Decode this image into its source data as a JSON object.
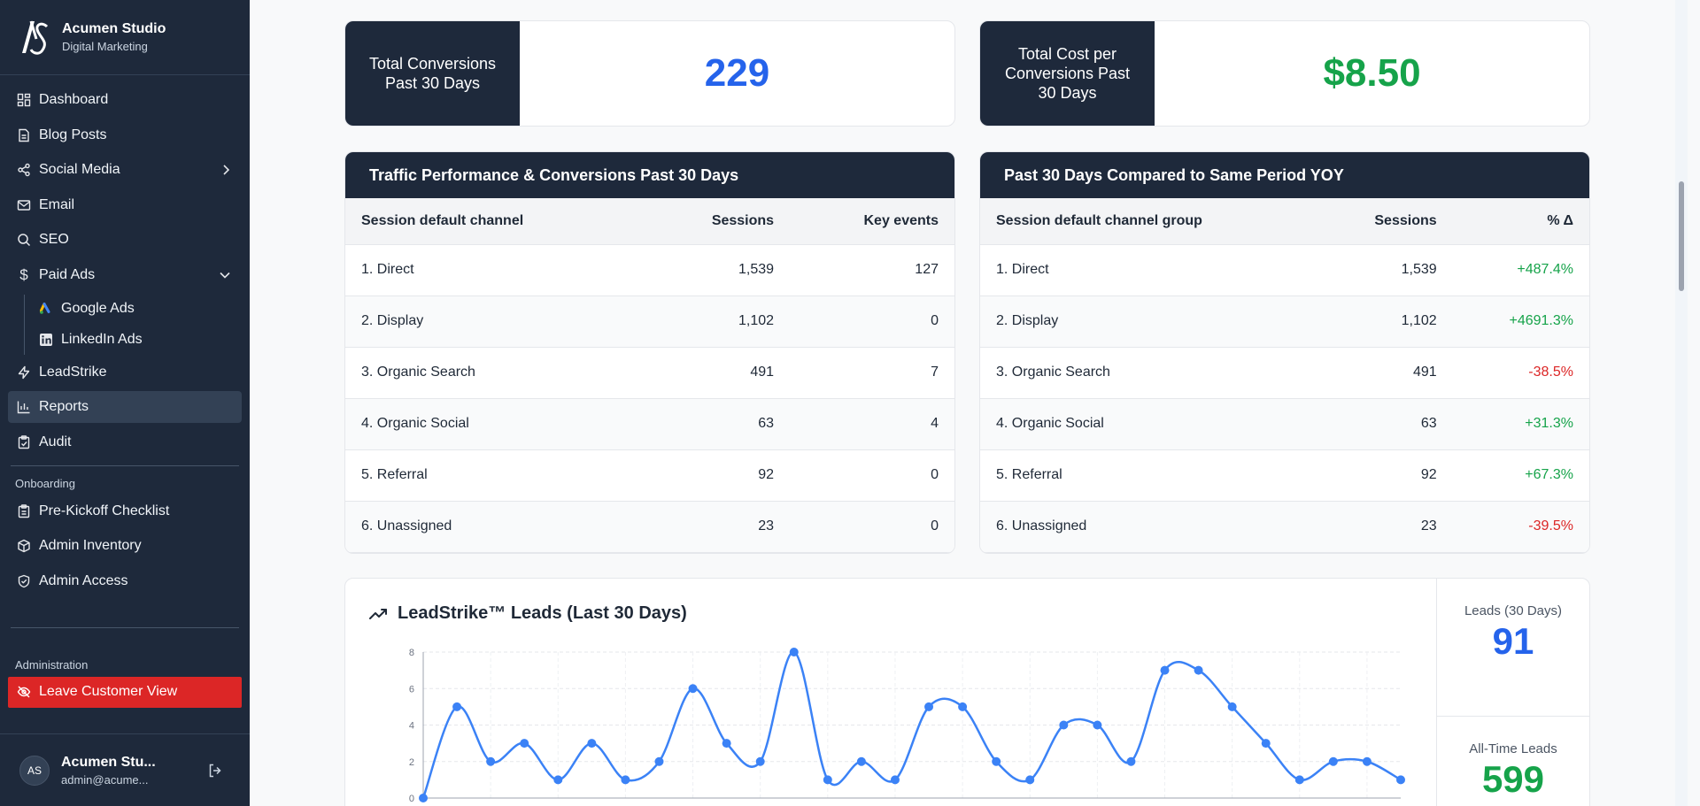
{
  "brand": {
    "name": "Acumen Studio",
    "subtitle": "Digital Marketing"
  },
  "nav": {
    "dashboard": "Dashboard",
    "blog": "Blog Posts",
    "social": "Social Media",
    "email": "Email",
    "seo": "SEO",
    "paid_ads": "Paid Ads",
    "google_ads": "Google Ads",
    "linkedin_ads": "LinkedIn Ads",
    "leadstrike": "LeadStrike",
    "reports": "Reports",
    "audit": "Audit"
  },
  "onboarding": {
    "label": "Onboarding",
    "checklist": "Pre-Kickoff Checklist",
    "inventory": "Admin Inventory",
    "access": "Admin Access"
  },
  "administration": {
    "label": "Administration",
    "leave": "Leave Customer View"
  },
  "user": {
    "initials": "AS",
    "name": "Acumen Stu...",
    "email": "admin@acume..."
  },
  "stats": {
    "conversions": {
      "label": "Total Conversions Past 30 Days",
      "value": "229"
    },
    "cost": {
      "label": "Total Cost per Conversions Past 30 Days",
      "value": "$8.50"
    }
  },
  "traffic": {
    "title": "Traffic Performance & Conversions Past 30 Days",
    "headers": [
      "Session default channel",
      "Sessions",
      "Key events"
    ],
    "rows": [
      [
        "1. Direct",
        "1,539",
        "127"
      ],
      [
        "2. Display",
        "1,102",
        "0"
      ],
      [
        "3. Organic Search",
        "491",
        "7"
      ],
      [
        "4. Organic Social",
        "63",
        "4"
      ],
      [
        "5. Referral",
        "92",
        "0"
      ],
      [
        "6. Unassigned",
        "23",
        "0"
      ]
    ]
  },
  "yoy": {
    "title": "Past 30 Days Compared to Same Period YOY",
    "headers": [
      "Session default channel group",
      "Sessions",
      "% Δ"
    ],
    "rows": [
      [
        "1. Direct",
        "1,539",
        "+487.4%"
      ],
      [
        "2. Display",
        "1,102",
        "+4691.3%"
      ],
      [
        "3. Organic Search",
        "491",
        "-38.5%"
      ],
      [
        "4. Organic Social",
        "63",
        "+31.3%"
      ],
      [
        "5. Referral",
        "92",
        "+67.3%"
      ],
      [
        "6. Unassigned",
        "23",
        "-39.5%"
      ]
    ]
  },
  "leads": {
    "title": "LeadStrike™ Leads (Last 30 Days)",
    "leads_30_label": "Leads (30 Days)",
    "leads_30_value": "91",
    "all_time_label": "All-Time Leads",
    "all_time_value": "599"
  },
  "chart_data": {
    "type": "line",
    "title": "LeadStrike™ Leads (Last 30 Days)",
    "ylim": [
      0,
      8
    ],
    "yticks": [
      "0",
      "2",
      "4",
      "6",
      "8"
    ],
    "values": [
      0,
      5,
      2,
      3,
      1,
      3,
      1,
      2,
      6,
      3,
      2,
      8,
      1,
      2,
      1,
      5,
      5,
      2,
      1,
      4,
      4,
      2,
      7,
      7,
      5,
      3,
      1,
      2,
      2,
      1
    ],
    "grid": true,
    "color": "#3b82f6"
  },
  "colors": {
    "sidebar": "#1e293b",
    "accent_blue": "#2563eb",
    "positive": "#16a34a",
    "negative": "#dc2626"
  }
}
